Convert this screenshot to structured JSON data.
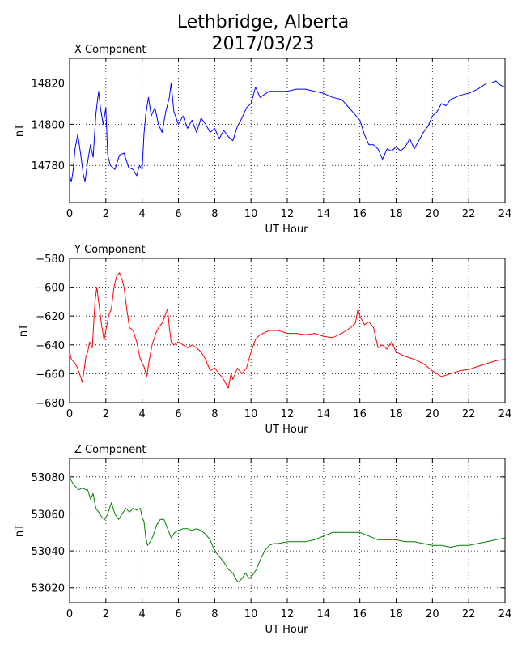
{
  "figure": {
    "title_line1": "Lethbridge, Alberta",
    "title_line2": "2017/03/23"
  },
  "chart_data": [
    {
      "type": "line",
      "title": "X Component",
      "xlabel": "UT Hour",
      "ylabel": "nT",
      "xlim": [
        0,
        24
      ],
      "ylim": [
        14762,
        14832
      ],
      "xticks": [
        0,
        2,
        4,
        6,
        8,
        10,
        12,
        14,
        16,
        18,
        20,
        22,
        24
      ],
      "yticks": [
        14780,
        14800,
        14820
      ],
      "grid": true,
      "color": "#0000ff",
      "x": [
        0,
        0.1,
        0.2,
        0.3,
        0.45,
        0.6,
        0.75,
        0.85,
        1.0,
        1.15,
        1.3,
        1.45,
        1.6,
        1.7,
        1.85,
        2.0,
        2.1,
        2.25,
        2.5,
        2.75,
        3.0,
        3.25,
        3.5,
        3.7,
        3.85,
        4.0,
        4.1,
        4.2,
        4.35,
        4.5,
        4.7,
        4.9,
        5.1,
        5.3,
        5.5,
        5.6,
        5.75,
        6.0,
        6.25,
        6.5,
        6.75,
        7.0,
        7.25,
        7.5,
        7.75,
        8.0,
        8.25,
        8.5,
        8.75,
        9.0,
        9.25,
        9.5,
        9.75,
        10.0,
        10.25,
        10.5,
        11.0,
        11.5,
        12.0,
        12.5,
        13.0,
        13.5,
        14.0,
        14.5,
        15.0,
        15.5,
        16.0,
        16.25,
        16.5,
        16.75,
        17.0,
        17.25,
        17.5,
        17.75,
        18.0,
        18.25,
        18.5,
        18.75,
        19.0,
        19.25,
        19.5,
        19.75,
        20.0,
        20.25,
        20.5,
        20.75,
        21.0,
        21.5,
        22.0,
        22.5,
        23.0,
        23.25,
        23.5,
        23.75,
        24.0
      ],
      "y": [
        14775,
        14772,
        14778,
        14788,
        14795,
        14786,
        14776,
        14772,
        14782,
        14790,
        14784,
        14805,
        14816,
        14808,
        14800,
        14808,
        14785,
        14780,
        14778,
        14785,
        14786,
        14779,
        14778,
        14775,
        14780,
        14778,
        14795,
        14805,
        14813,
        14804,
        14808,
        14800,
        14796,
        14806,
        14813,
        14820,
        14806,
        14800,
        14804,
        14798,
        14802,
        14796,
        14803,
        14800,
        14796,
        14798,
        14793,
        14797,
        14794,
        14792,
        14799,
        14803,
        14808,
        14810,
        14818,
        14813,
        14816,
        14816,
        14816,
        14817,
        14817,
        14816,
        14815,
        14813,
        14812,
        14807,
        14802,
        14795,
        14790,
        14790,
        14788,
        14783,
        14788,
        14787,
        14789,
        14787,
        14789,
        14793,
        14788,
        14792,
        14796,
        14799,
        14804,
        14806,
        14810,
        14809,
        14812,
        14814,
        14815,
        14817,
        14820,
        14820,
        14821,
        14819,
        14818
      ]
    },
    {
      "type": "line",
      "title": "Y Component",
      "xlabel": "UT Hour",
      "ylabel": "nT",
      "xlim": [
        0,
        24
      ],
      "ylim": [
        -680,
        -580
      ],
      "xticks": [
        0,
        2,
        4,
        6,
        8,
        10,
        12,
        14,
        16,
        18,
        20,
        22,
        24
      ],
      "yticks": [
        -580,
        -600,
        -620,
        -640,
        -660,
        -680
      ],
      "grid": true,
      "color": "#ff0000",
      "x": [
        0,
        0.1,
        0.25,
        0.4,
        0.55,
        0.7,
        0.8,
        0.9,
        1.0,
        1.1,
        1.25,
        1.4,
        1.5,
        1.6,
        1.75,
        1.9,
        2.0,
        2.15,
        2.3,
        2.45,
        2.6,
        2.75,
        2.9,
        3.0,
        3.15,
        3.3,
        3.5,
        3.7,
        3.9,
        4.1,
        4.25,
        4.4,
        4.55,
        4.75,
        4.9,
        5.1,
        5.25,
        5.4,
        5.5,
        5.6,
        5.75,
        6.0,
        6.25,
        6.5,
        6.75,
        7.0,
        7.25,
        7.5,
        7.75,
        8.0,
        8.25,
        8.5,
        8.75,
        8.9,
        9.0,
        9.25,
        9.5,
        9.75,
        10.0,
        10.25,
        10.5,
        11.0,
        11.5,
        12.0,
        12.5,
        13.0,
        13.5,
        14.0,
        14.5,
        15.0,
        15.25,
        15.5,
        15.75,
        15.9,
        16.0,
        16.25,
        16.5,
        16.75,
        17.0,
        17.25,
        17.5,
        17.75,
        18.0,
        18.5,
        19.0,
        19.5,
        20.0,
        20.25,
        20.5,
        20.75,
        21.0,
        21.5,
        22.0,
        22.5,
        23.0,
        23.5,
        24.0
      ],
      "y": [
        -645,
        -650,
        -652,
        -655,
        -660,
        -666,
        -658,
        -648,
        -645,
        -638,
        -642,
        -610,
        -600,
        -610,
        -625,
        -637,
        -630,
        -620,
        -615,
        -600,
        -592,
        -590,
        -595,
        -600,
        -615,
        -628,
        -630,
        -638,
        -650,
        -655,
        -662,
        -650,
        -640,
        -632,
        -628,
        -625,
        -620,
        -615,
        -628,
        -638,
        -640,
        -638,
        -640,
        -642,
        -640,
        -642,
        -645,
        -650,
        -658,
        -656,
        -660,
        -664,
        -670,
        -660,
        -664,
        -656,
        -660,
        -656,
        -645,
        -636,
        -633,
        -630,
        -630,
        -632,
        -632,
        -633,
        -632,
        -634,
        -635,
        -632,
        -630,
        -628,
        -625,
        -615,
        -620,
        -626,
        -624,
        -628,
        -642,
        -640,
        -643,
        -638,
        -645,
        -648,
        -650,
        -653,
        -658,
        -660,
        -662,
        -661,
        -660,
        -658,
        -657,
        -655,
        -653,
        -651,
        -650
      ]
    },
    {
      "type": "line",
      "title": "Z Component",
      "xlabel": "UT Hour",
      "ylabel": "nT",
      "xlim": [
        0,
        24
      ],
      "ylim": [
        53012,
        53090
      ],
      "xticks": [
        0,
        2,
        4,
        6,
        8,
        10,
        12,
        14,
        16,
        18,
        20,
        22,
        24
      ],
      "yticks": [
        53020,
        53040,
        53060,
        53080
      ],
      "grid": true,
      "color": "#008000",
      "x": [
        0,
        0.15,
        0.3,
        0.5,
        0.7,
        0.9,
        1.0,
        1.15,
        1.3,
        1.45,
        1.6,
        1.8,
        1.95,
        2.1,
        2.3,
        2.5,
        2.7,
        2.9,
        3.1,
        3.3,
        3.5,
        3.7,
        3.9,
        4.0,
        4.1,
        4.2,
        4.3,
        4.45,
        4.6,
        4.8,
        5.0,
        5.2,
        5.4,
        5.6,
        5.8,
        6.0,
        6.25,
        6.5,
        6.75,
        7.0,
        7.25,
        7.5,
        7.75,
        8.0,
        8.25,
        8.5,
        8.75,
        9.0,
        9.15,
        9.3,
        9.5,
        9.7,
        9.9,
        10.1,
        10.3,
        10.5,
        10.75,
        11.0,
        11.25,
        11.5,
        12.0,
        12.5,
        13.0,
        13.5,
        14.0,
        14.5,
        15.0,
        15.5,
        16.0,
        16.5,
        17.0,
        17.5,
        18.0,
        18.5,
        19.0,
        19.5,
        20.0,
        20.5,
        21.0,
        21.5,
        22.0,
        22.5,
        23.0,
        23.5,
        24.0
      ],
      "y": [
        53080,
        53077,
        53075,
        53073,
        53074,
        53073,
        53073,
        53068,
        53071,
        53063,
        53061,
        53058,
        53057,
        53060,
        53066,
        53060,
        53057,
        53060,
        53063,
        53061,
        53063,
        53062,
        53063,
        53058,
        53056,
        53047,
        53043,
        53045,
        53048,
        53054,
        53057,
        53057,
        53052,
        53047,
        53050,
        53051,
        53052,
        53052,
        53051,
        53052,
        53051,
        53049,
        53046,
        53040,
        53037,
        53034,
        53030,
        53028,
        53025,
        53023,
        53025,
        53028,
        53025,
        53027,
        53030,
        53035,
        53040,
        53043,
        53044,
        53044,
        53045,
        53045,
        53045,
        53046,
        53048,
        53050,
        53050,
        53050,
        53050,
        53048,
        53046,
        53046,
        53046,
        53045,
        53045,
        53044,
        53043,
        53043,
        53042,
        53043,
        53043,
        53044,
        53045,
        53046,
        53047
      ]
    }
  ]
}
